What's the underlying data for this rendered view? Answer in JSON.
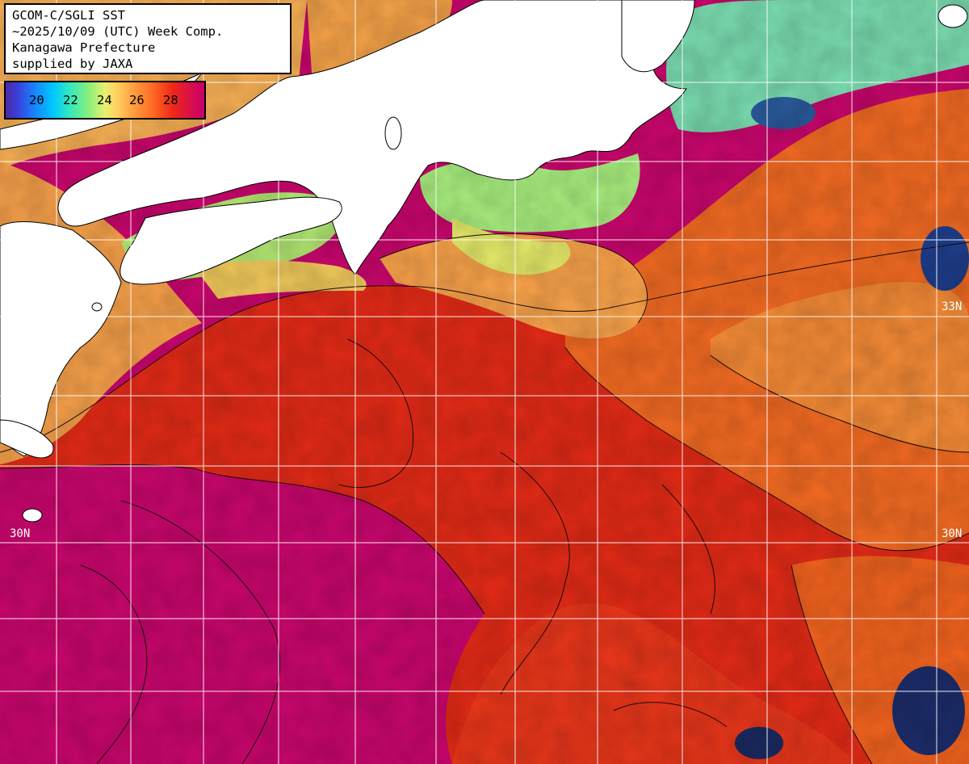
{
  "header": {
    "line1": "GCOM-C/SGLI SST",
    "line2": "~2025/10/09 (UTC) Week Comp.",
    "line3": "Kanagawa Prefecture",
    "line4": "supplied by JAXA"
  },
  "colorbar": {
    "ticks": [
      "20",
      "22",
      "24",
      "26",
      "28"
    ]
  },
  "grid_labels": {
    "lat_33_right": "33N",
    "lat_30_left": "30N",
    "lat_30_right": "30N"
  },
  "colors": {
    "land": "#ffffff",
    "sst_warmest": "#c8006a",
    "sst_red": "#e42a10",
    "sst_orange": "#f56a1e",
    "sst_light_orange": "#f7a548",
    "sst_yellow": "#e8e870",
    "sst_green": "#a0f080",
    "grid": "#ffffff"
  }
}
